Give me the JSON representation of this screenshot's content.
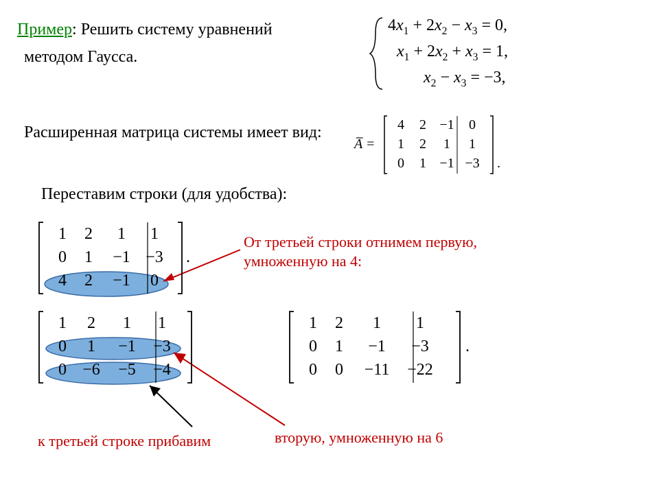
{
  "header": {
    "example_label": "Пример",
    "colon": ": ",
    "solve_text": "Решить систему уравнений",
    "method_text": "методом Гаусса."
  },
  "equations": {
    "eq1_parts": [
      "4",
      "x",
      "1",
      " + 2",
      "x",
      "2",
      " − ",
      "x",
      "3",
      " = 0,"
    ],
    "eq2_parts": [
      "x",
      "1",
      " + 2",
      "x",
      "2",
      " + ",
      "x",
      "3",
      " = 1,"
    ],
    "eq3_parts": [
      "x",
      "2",
      " − ",
      "x",
      "3",
      " = −3,"
    ]
  },
  "line_augmented": "Расширенная матрица системы имеет вид:",
  "line_permute": "Переставим строки (для удобства):",
  "matrix_A_label": "A̅ =",
  "matrix_A": {
    "rows": [
      [
        "4",
        "2",
        "−1",
        "0"
      ],
      [
        "1",
        "2",
        "1",
        "1"
      ],
      [
        "0",
        "1",
        "−1",
        "−3"
      ]
    ],
    "trailing": "."
  },
  "matrix1": {
    "rows": [
      [
        "1",
        "2",
        "1",
        "1"
      ],
      [
        "0",
        "1",
        "−1",
        "−3"
      ],
      [
        "4",
        "2",
        "−1",
        "0"
      ]
    ],
    "trailing": "."
  },
  "matrix2": {
    "rows": [
      [
        "1",
        "2",
        "1",
        "1"
      ],
      [
        "0",
        "1",
        "−1",
        "−3"
      ],
      [
        "0",
        "−6",
        "−5",
        "−4"
      ]
    ]
  },
  "matrix3": {
    "rows": [
      [
        "1",
        "2",
        "1",
        "1"
      ],
      [
        "0",
        "1",
        "−1",
        "−3"
      ],
      [
        "0",
        "0",
        "−11",
        "−22"
      ]
    ],
    "trailing": "."
  },
  "annot1_l1": "От третьей строки отнимем первую,",
  "annot1_l2": "умноженную на 4:",
  "annot2": "к третьей строке прибавим",
  "annot3": "вторую, умноженную на 6",
  "colors": {
    "green": "#008000",
    "red": "#c00000",
    "blue_fill": "#5b9bd5",
    "blue_stroke": "#3a6ca8",
    "text": "#000000",
    "bg": "#ffffff"
  },
  "layout": {
    "matrixA_col_widths": [
      32,
      32,
      38,
      36
    ],
    "matrix1_col_widths": [
      36,
      36,
      48,
      40
    ],
    "matrix3_col_widths": [
      36,
      36,
      58,
      54
    ]
  }
}
